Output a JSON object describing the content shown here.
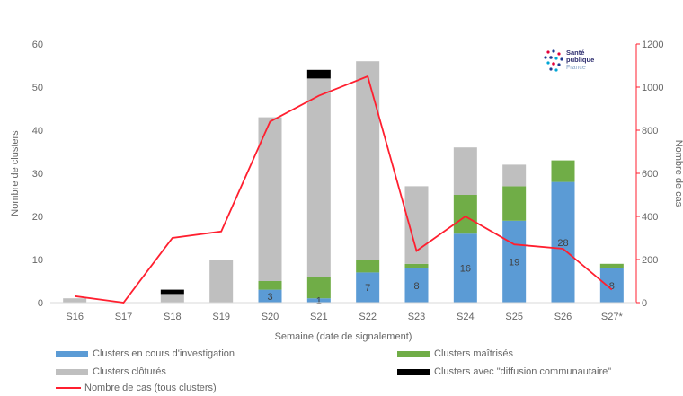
{
  "chart_data": {
    "type": "bar",
    "stacked": true,
    "categories": [
      "S16",
      "S17",
      "S18",
      "S19",
      "S20",
      "S21",
      "S22",
      "S23",
      "S24",
      "S25",
      "S26",
      "S27*"
    ],
    "series": [
      {
        "name": "Clusters en cours d'investigation",
        "color": "#5b9bd5",
        "values": [
          0,
          0,
          0,
          0,
          3,
          1,
          7,
          8,
          16,
          19,
          28,
          8
        ],
        "labels": [
          "",
          "",
          "",
          "",
          "3",
          "1",
          "7",
          "8",
          "16",
          "19",
          "28",
          "8"
        ]
      },
      {
        "name": "Clusters maîtrisés",
        "color": "#70ad47",
        "values": [
          0,
          0,
          0,
          0,
          2,
          5,
          3,
          1,
          9,
          8,
          5,
          1
        ]
      },
      {
        "name": "Clusters clôturés",
        "color": "#bfbfbf",
        "values": [
          1,
          0,
          2,
          10,
          38,
          46,
          46,
          18,
          11,
          5,
          0,
          0
        ]
      },
      {
        "name": "Clusters avec \"diffusion communautaire\"",
        "color": "#000000",
        "values": [
          0,
          0,
          1,
          0,
          0,
          2,
          0,
          0,
          0,
          0,
          0,
          0
        ]
      }
    ],
    "line": {
      "name": "Nombre de cas (tous clusters)",
      "color": "#ff1f2f",
      "axis": "right",
      "values": [
        30,
        0,
        300,
        330,
        840,
        960,
        1050,
        240,
        400,
        270,
        250,
        60
      ]
    },
    "xlabel": "Semaine (date de signalement)",
    "ylabel": "Nombre de clusters",
    "y2label": "Nombre de cas",
    "ylim": [
      0,
      60
    ],
    "yticks": [
      "0",
      "10",
      "20",
      "30",
      "40",
      "50",
      "60"
    ],
    "y2lim": [
      0,
      1200
    ],
    "y2ticks": [
      "0",
      "200",
      "400",
      "600",
      "800",
      "1000",
      "1200"
    ],
    "grid": false,
    "legend_position": "bottom"
  },
  "logo": {
    "line1": "Santé",
    "line2": "publique",
    "line3": "France"
  }
}
